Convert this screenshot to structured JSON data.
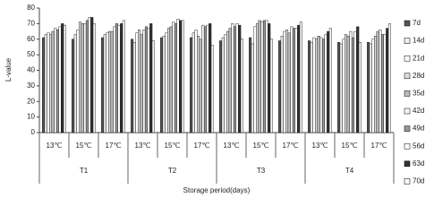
{
  "chart_data": {
    "type": "bar",
    "ylabel": "L-value",
    "xlabel": "Storage period(days)",
    "categories": [
      "13℃",
      "15℃",
      "17℃",
      "13℃",
      "15℃",
      "17℃",
      "13℃",
      "15℃",
      "17℃",
      "13℃",
      "15℃",
      "17℃"
    ],
    "groups": [
      "T1",
      "T2",
      "T3",
      "T4"
    ],
    "ylim": [
      0,
      80
    ],
    "yticks": [
      0,
      10,
      20,
      30,
      40,
      50,
      60,
      70,
      80
    ],
    "grid": false,
    "legend": "right",
    "series": [
      {
        "name": "7d",
        "color": "#555555",
        "values": [
          61,
          60,
          61,
          60,
          61,
          61,
          59,
          61,
          59,
          59,
          58,
          58
        ]
      },
      {
        "name": "14d",
        "color": "#eeeeee",
        "values": [
          63,
          63,
          63,
          58,
          62,
          64,
          61,
          57,
          62,
          58,
          57,
          57
        ]
      },
      {
        "name": "21d",
        "color": "#ffffff",
        "values": [
          64,
          66,
          64,
          64,
          64,
          66,
          63,
          68,
          65,
          61,
          60,
          60
        ]
      },
      {
        "name": "28d",
        "color": "#dddddd",
        "values": [
          63,
          71,
          65,
          66,
          67,
          62,
          65,
          70,
          66,
          60,
          63,
          62
        ]
      },
      {
        "name": "35d",
        "color": "#bbbbbb",
        "values": [
          65,
          70,
          65,
          63,
          68,
          60,
          67,
          72,
          64,
          62,
          62,
          65
        ]
      },
      {
        "name": "42d",
        "color": "#f5f5f5",
        "values": [
          67,
          70,
          68,
          66,
          71,
          69,
          70,
          71,
          68,
          61,
          65,
          66
        ]
      },
      {
        "name": "49d",
        "color": "#999999",
        "values": [
          66,
          72,
          70,
          68,
          70,
          68,
          68,
          72,
          67,
          60,
          61,
          63
        ]
      },
      {
        "name": "56d",
        "color": "#ffffff",
        "values": [
          68,
          74,
          69,
          67,
          73,
          69,
          70,
          72,
          67,
          63,
          65,
          63
        ]
      },
      {
        "name": "63d",
        "color": "#333333",
        "values": [
          70,
          74,
          70,
          70,
          72,
          70,
          69,
          70,
          69,
          65,
          68,
          67
        ]
      },
      {
        "name": "70d",
        "color": "#fafafa",
        "values": [
          69,
          70,
          72,
          59,
          72,
          56,
          60,
          60,
          71,
          67,
          58,
          70
        ]
      }
    ]
  }
}
